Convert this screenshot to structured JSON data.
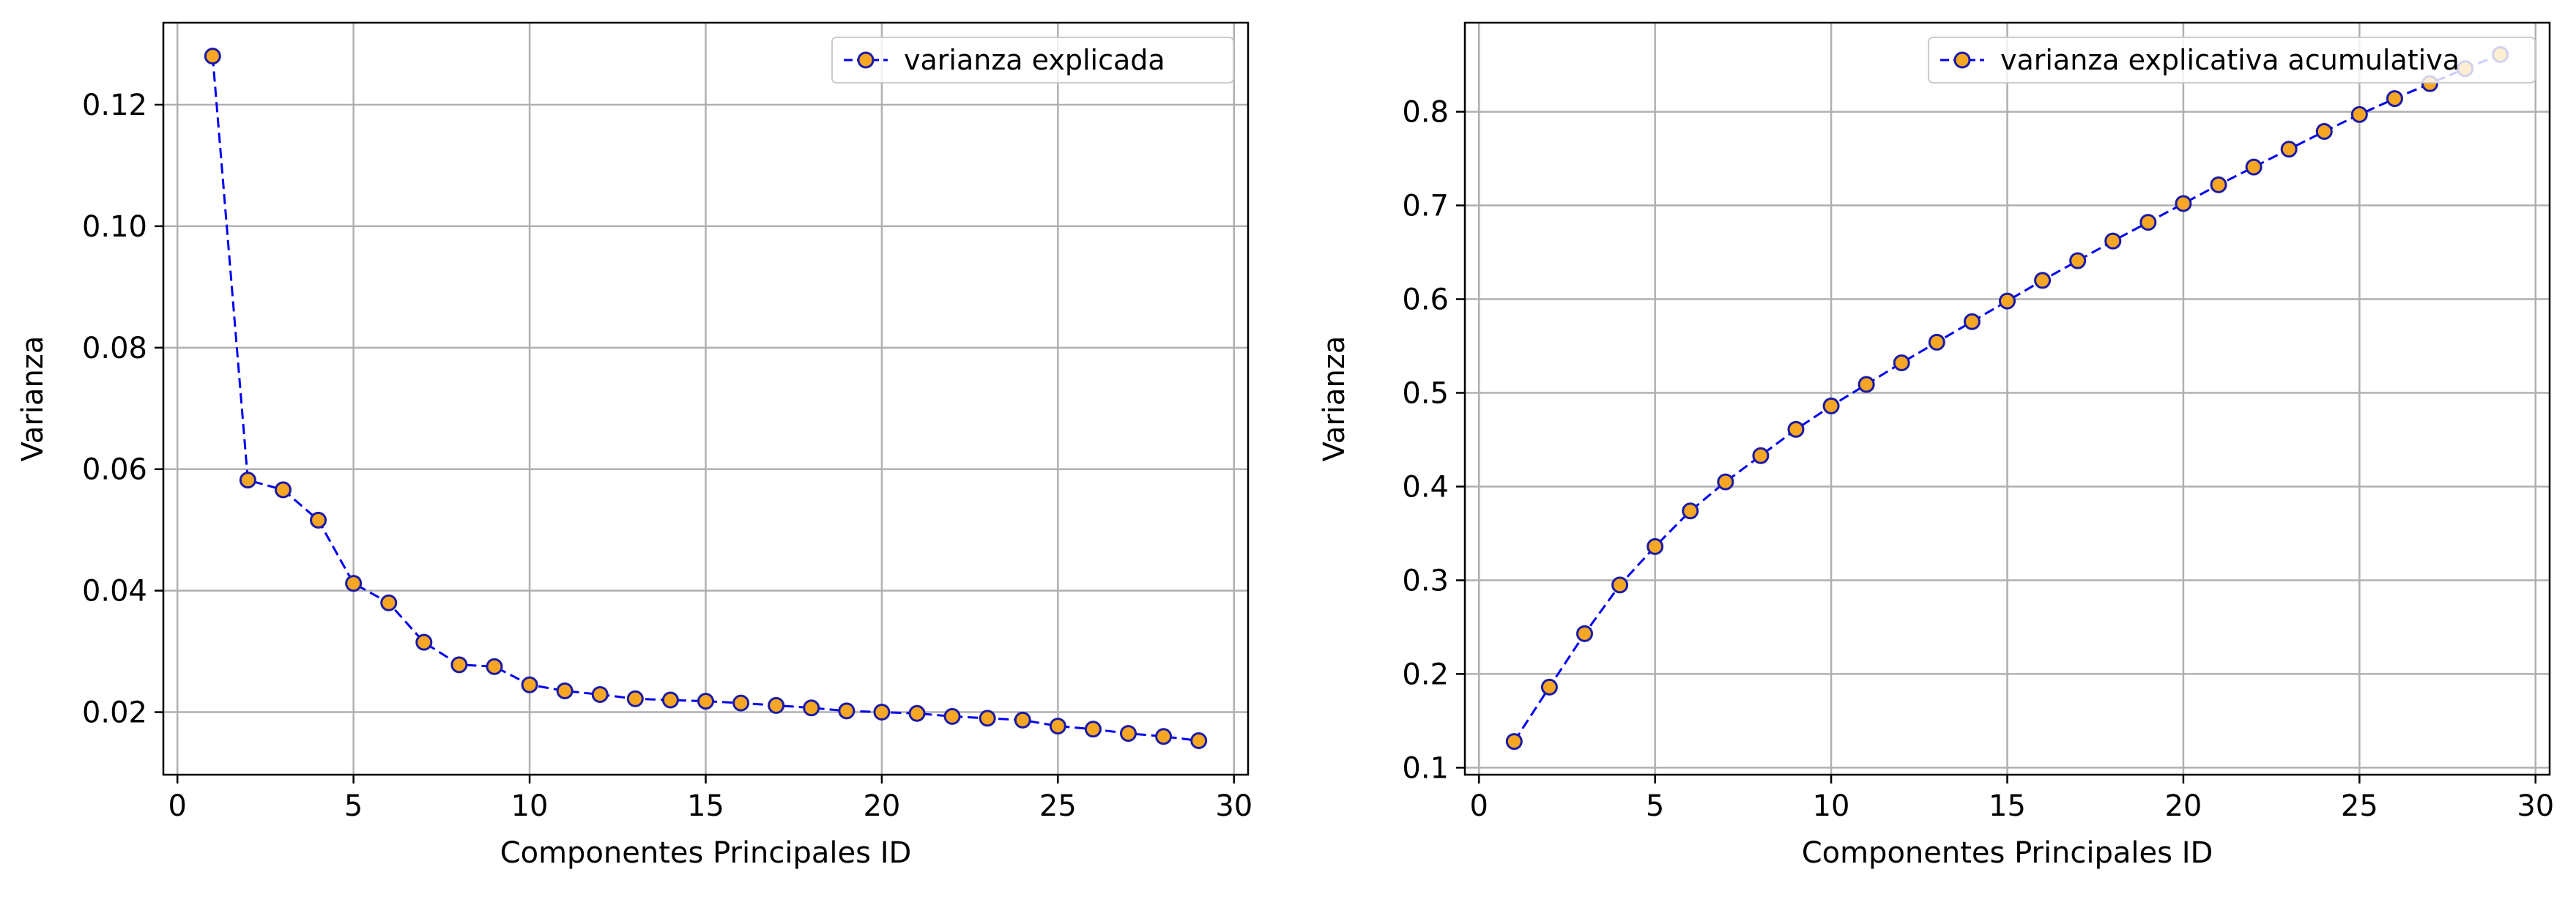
{
  "colors": {
    "line": "#0000ee",
    "marker_fill": "#f5a623",
    "marker_edge": "#1a1aa6",
    "grid": "#b0b0b0",
    "axes": "#000000"
  },
  "chart_data": [
    {
      "type": "line",
      "xlabel": "Componentes Principales ID",
      "ylabel": "Varianza",
      "xlim": [
        -0.4,
        30.4
      ],
      "ylim": [
        0.0097,
        0.1335
      ],
      "xticks": [
        0,
        5,
        10,
        15,
        20,
        25,
        30
      ],
      "xtick_labels": [
        "0",
        "5",
        "10",
        "15",
        "20",
        "25",
        "30"
      ],
      "yticks": [
        0.02,
        0.04,
        0.06,
        0.08,
        0.1,
        0.12
      ],
      "ytick_labels": [
        "0.02",
        "0.04",
        "0.06",
        "0.08",
        "0.10",
        "0.12"
      ],
      "grid": true,
      "legend_position": "top-right",
      "series": [
        {
          "name": "varianza explicada",
          "line_style": "dashed",
          "marker": "circle",
          "x": [
            1,
            2,
            3,
            4,
            5,
            6,
            7,
            8,
            9,
            10,
            11,
            12,
            13,
            14,
            15,
            16,
            17,
            18,
            19,
            20,
            21,
            22,
            23,
            24,
            25,
            26,
            27,
            28,
            29
          ],
          "y": [
            0.128,
            0.0582,
            0.0566,
            0.0516,
            0.0412,
            0.038,
            0.0315,
            0.0278,
            0.0275,
            0.0245,
            0.0235,
            0.0229,
            0.0222,
            0.022,
            0.0218,
            0.0215,
            0.0211,
            0.0207,
            0.0202,
            0.02,
            0.0198,
            0.0193,
            0.019,
            0.0187,
            0.0177,
            0.0172,
            0.0165,
            0.016,
            0.0153
          ]
        }
      ]
    },
    {
      "type": "line",
      "xlabel": "Componentes Principales ID",
      "ylabel": "Varianza",
      "xlim": [
        -0.4,
        30.4
      ],
      "ylim": [
        0.0925,
        0.895
      ],
      "xticks": [
        0,
        5,
        10,
        15,
        20,
        25,
        30
      ],
      "xtick_labels": [
        "0",
        "5",
        "10",
        "15",
        "20",
        "25",
        "30"
      ],
      "yticks": [
        0.1,
        0.2,
        0.3,
        0.4,
        0.5,
        0.6,
        0.7,
        0.8
      ],
      "ytick_labels": [
        "0.1",
        "0.2",
        "0.3",
        "0.4",
        "0.5",
        "0.6",
        "0.7",
        "0.8"
      ],
      "grid": true,
      "legend_position": "top-right",
      "series": [
        {
          "name": "varianza explicativa acumulativa",
          "line_style": "dashed",
          "marker": "circle",
          "x": [
            1,
            2,
            3,
            4,
            5,
            6,
            7,
            8,
            9,
            10,
            11,
            12,
            13,
            14,
            15,
            16,
            17,
            18,
            19,
            20,
            21,
            22,
            23,
            24,
            25,
            26,
            27,
            28,
            29
          ],
          "y": [
            0.128,
            0.186,
            0.243,
            0.295,
            0.336,
            0.374,
            0.405,
            0.433,
            0.461,
            0.486,
            0.509,
            0.532,
            0.554,
            0.576,
            0.598,
            0.62,
            0.641,
            0.662,
            0.682,
            0.702,
            0.722,
            0.741,
            0.76,
            0.779,
            0.797,
            0.814,
            0.83,
            0.846,
            0.861
          ]
        }
      ]
    }
  ]
}
